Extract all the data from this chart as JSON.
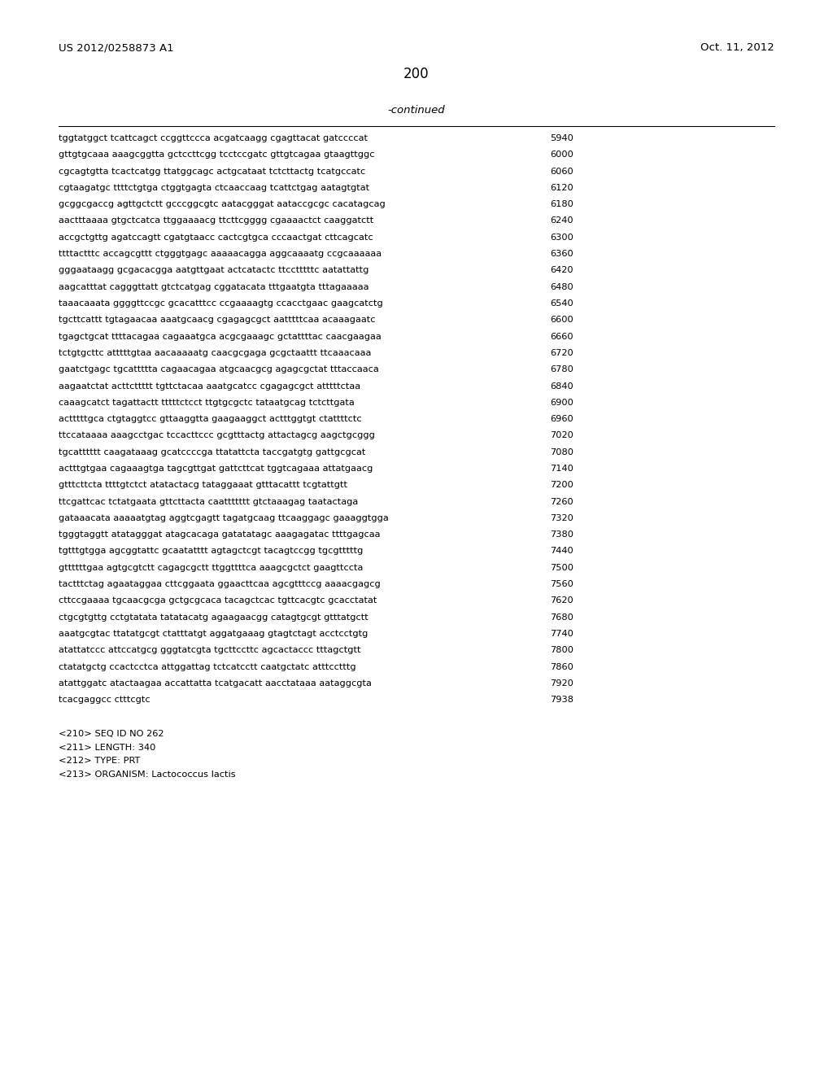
{
  "header_left": "US 2012/0258873 A1",
  "header_right": "Oct. 11, 2012",
  "page_number": "200",
  "continued_label": "-continued",
  "background_color": "#ffffff",
  "text_color": "#000000",
  "sequence_lines": [
    [
      "tggtatggct tcattcagct ccggttccca acgatcaagg cgagttacat gatccccat",
      "5940"
    ],
    [
      "gttgtgcaaa aaagcggtta gctccttcgg tcctccgatc gttgtcagaa gtaagttggc",
      "6000"
    ],
    [
      "cgcagtgtta tcactcatgg ttatggcagc actgcataat tctcttactg tcatgccatc",
      "6060"
    ],
    [
      "cgtaagatgc ttttctgtga ctggtgagta ctcaaccaag tcattctgag aatagtgtat",
      "6120"
    ],
    [
      "gcggcgaccg agttgctctt gcccggcgtc aatacgggat aataccgcgc cacatagcag",
      "6180"
    ],
    [
      "aactttaaaa gtgctcatca ttggaaaacg ttcttcgggg cgaaaactct caaggatctt",
      "6240"
    ],
    [
      "accgctgttg agatccagtt cgatgtaacc cactcgtgca cccaactgat cttcagcatc",
      "6300"
    ],
    [
      "ttttactttc accagcgttt ctgggtgagc aaaaacagga aggcaaaatg ccgcaaaaaa",
      "6360"
    ],
    [
      "gggaataagg gcgacacgga aatgttgaat actcatactc ttcctttttc aatattattg",
      "6420"
    ],
    [
      "aagcatttat cagggttatt gtctcatgag cggatacata tttgaatgta tttagaaaaa",
      "6480"
    ],
    [
      "taaacaaata ggggttccgc gcacatttcc ccgaaaagtg ccacctgaac gaagcatctg",
      "6540"
    ],
    [
      "tgcttcattt tgtagaacaa aaatgcaacg cgagagcgct aatttttcaa acaaagaatc",
      "6600"
    ],
    [
      "tgagctgcat ttttacagaa cagaaatgca acgcgaaagc gctattttac caacgaagaa",
      "6660"
    ],
    [
      "tctgtgcttc atttttgtaa aacaaaaatg caacgcgaga gcgctaattt ttcaaacaaa",
      "6720"
    ],
    [
      "gaatctgagc tgcattttta cagaacagaa atgcaacgcg agagcgctat tttaccaaca",
      "6780"
    ],
    [
      "aagaatctat acttcttttt tgttctacaa aaatgcatcc cgagagcgct atttttctaa",
      "6840"
    ],
    [
      "caaagcatct tagattactt tttttctcct ttgtgcgctc tataatgcag tctcttgata",
      "6900"
    ],
    [
      "actttttgca ctgtaggtcc gttaaggtta gaagaaggct actttggtgt ctattttctc",
      "6960"
    ],
    [
      "ttccataaaa aaagcctgac tccacttccc gcgtttactg attactagcg aagctgcggg",
      "7020"
    ],
    [
      "tgcatttttt caagataaag gcatccccga ttatattcta taccgatgtg gattgcgcat",
      "7080"
    ],
    [
      "actttgtgaa cagaaagtga tagcgttgat gattcttcat tggtcagaaa attatgaacg",
      "7140"
    ],
    [
      "gtttcttcta ttttgtctct atatactacg tataggaaat gtttacattt tcgtattgtt",
      "7200"
    ],
    [
      "ttcgattcac tctatgaata gttcttacta caattttttt gtctaaagag taatactaga",
      "7260"
    ],
    [
      "gataaacata aaaaatgtag aggtcgagtt tagatgcaag ttcaaggagc gaaaggtgga",
      "7320"
    ],
    [
      "tgggtaggtt atatagggat atagcacaga gatatatagc aaagagatac ttttgagcaa",
      "7380"
    ],
    [
      "tgtttgtgga agcggtattc gcaatatttt agtagctcgt tacagtccgg tgcgtttttg",
      "7440"
    ],
    [
      "gttttttgaa agtgcgtctt cagagcgctt ttggttttca aaagcgctct gaagttccta",
      "7500"
    ],
    [
      "tactttctag agaataggaa cttcggaata ggaacttcaa agcgtttccg aaaacgagcg",
      "7560"
    ],
    [
      "cttccgaaaa tgcaacgcga gctgcgcaca tacagctcac tgttcacgtc gcacctatat",
      "7620"
    ],
    [
      "ctgcgtgttg cctgtatata tatatacatg agaagaacgg catagtgcgt gtttatgctt",
      "7680"
    ],
    [
      "aaatgcgtac ttatatgcgt ctatttatgt aggatgaaag gtagtctagt acctcctgtg",
      "7740"
    ],
    [
      "atattatccc attccatgcg gggtatcgta tgcttccttc agcactaccc tttagctgtt",
      "7800"
    ],
    [
      "ctatatgctg ccactcctca attggattag tctcatcctt caatgctatc atttcctttg",
      "7860"
    ],
    [
      "atattggatc atactaagaa accattatta tcatgacatt aacctataaa aataggcgta",
      "7920"
    ],
    [
      "tcacgaggcc ctttcgtc",
      "7938"
    ]
  ],
  "footer_lines": [
    "<210> SEQ ID NO 262",
    "<211> LENGTH: 340",
    "<212> TYPE: PRT",
    "<213> ORGANISM: Lactococcus lactis"
  ]
}
